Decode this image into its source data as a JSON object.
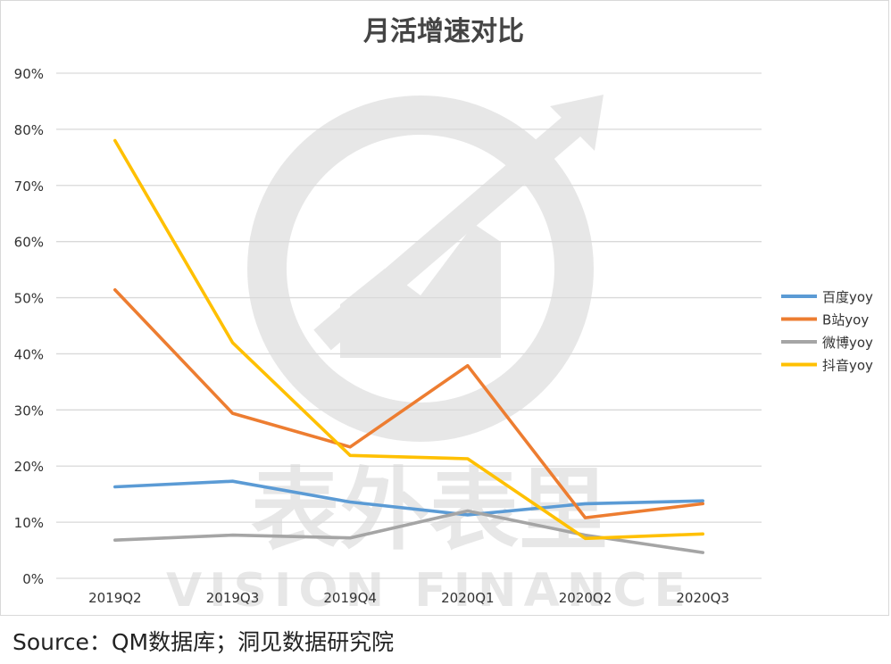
{
  "chart_data": {
    "type": "line",
    "title": "月活增速对比",
    "xlabel": "",
    "ylabel": "",
    "categories": [
      "2019Q2",
      "2019Q3",
      "2019Q4",
      "2020Q1",
      "2020Q2",
      "2020Q3"
    ],
    "ylim": [
      0,
      90
    ],
    "yticks": [
      0,
      10,
      20,
      30,
      40,
      50,
      60,
      70,
      80,
      90
    ],
    "ytick_labels": [
      "0%",
      "10%",
      "20%",
      "30%",
      "40%",
      "50%",
      "60%",
      "70%",
      "80%",
      "90%"
    ],
    "grid": true,
    "legend_position": "right",
    "series": [
      {
        "name": "百度yoy",
        "color": "#5b9bd5",
        "values": [
          16.3,
          17.3,
          13.6,
          11.3,
          13.3,
          13.8
        ]
      },
      {
        "name": "B站yoy",
        "color": "#ed7d31",
        "values": [
          51.4,
          29.4,
          23.4,
          37.9,
          10.8,
          13.3
        ]
      },
      {
        "name": "微博yoy",
        "color": "#a5a5a5",
        "values": [
          6.8,
          7.7,
          7.2,
          12.0,
          7.7,
          4.6
        ]
      },
      {
        "name": "抖音yoy",
        "color": "#ffc000",
        "values": [
          78.0,
          42.0,
          21.9,
          21.3,
          7.1,
          7.9
        ]
      }
    ]
  },
  "watermark": {
    "cn_text": "表外表里",
    "en_text": "VISION FINANCE"
  },
  "source": "Source：QM数据库；洞见数据研究院"
}
